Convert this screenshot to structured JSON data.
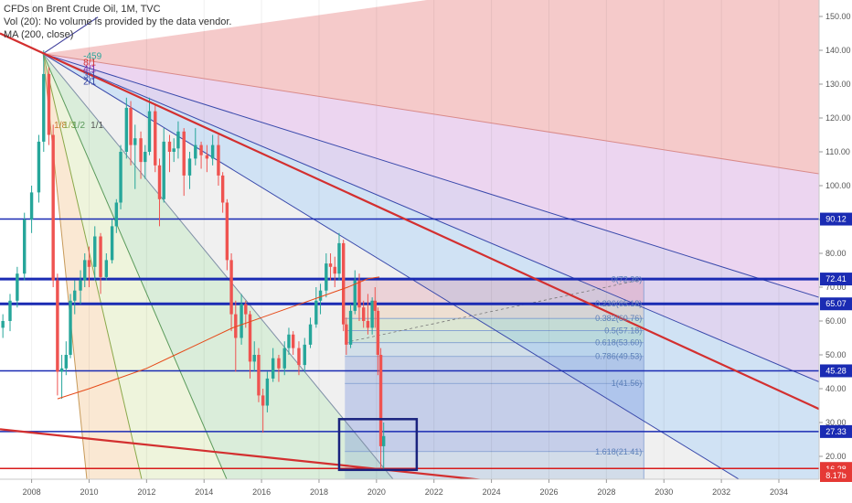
{
  "legend": {
    "line1": "CFDs on Brent Crude Oil, 1M, TVC",
    "line2": "Vol (20): No volume is provided by the data vendor.",
    "line3": "MA (200, close)"
  },
  "chart_data": {
    "type": "candlestick",
    "x_range": [
      2006.9,
      2035.4
    ],
    "y_range": [
      8.17,
      155
    ],
    "x_ticks": [
      "2008",
      "2010",
      "2012",
      "2014",
      "2016",
      "2018",
      "2020",
      "2022",
      "2024",
      "2026",
      "2028",
      "2030",
      "2032",
      "2034"
    ],
    "y_ticks": [
      150,
      140,
      130,
      120,
      110,
      100,
      90,
      80,
      70,
      60,
      50,
      40,
      30,
      20
    ],
    "levels": [
      {
        "value": 90.12,
        "label": "90.12",
        "color": "#1a2bb3",
        "width": 1.5
      },
      {
        "value": 72.41,
        "label": "72.41",
        "color": "#1a2bb3",
        "width": 3
      },
      {
        "value": 65.07,
        "label": "65.07",
        "color": "#1a2bb3",
        "width": 3
      },
      {
        "value": 45.28,
        "label": "45.28",
        "color": "#1a2bb3",
        "width": 1.5
      },
      {
        "value": 27.33,
        "label": "27.33",
        "color": "#1a2bb3",
        "width": 1.5
      },
      {
        "value": 16.41,
        "label": "16.41",
        "color": "#d81b1b",
        "width": 1.5
      }
    ],
    "price_badges": [
      {
        "value": 16.28,
        "label": "16.28",
        "color": "#e53935"
      },
      {
        "value": 8.17,
        "label": "8.17b",
        "color": "#e53935"
      }
    ],
    "fib_levels": [
      {
        "label": "0(72.36)",
        "value": 72.36
      },
      {
        "label": "0.236(65.18)",
        "value": 65.18
      },
      {
        "label": "0.382(60.76)",
        "value": 60.76
      },
      {
        "label": "0.5(57.18)",
        "value": 57.18
      },
      {
        "label": "0.618(53.60)",
        "value": 53.6
      },
      {
        "label": "0.786(49.53)",
        "value": 49.53
      },
      {
        "label": "1(41.56)",
        "value": 41.56
      },
      {
        "label": "1.618(21.41)",
        "value": 21.41
      }
    ],
    "gann_labels_top": [
      "-459",
      "8/1",
      "4/1",
      "3/1",
      "2/1"
    ],
    "gann_labels_mid": [
      "1/8",
      "1/3",
      "1/2",
      "1/1"
    ],
    "candles": [
      [
        2007.0,
        58,
        62,
        55,
        60
      ],
      [
        2007.25,
        60,
        68,
        57,
        66
      ],
      [
        2007.5,
        66,
        76,
        64,
        74
      ],
      [
        2007.75,
        74,
        92,
        72,
        90
      ],
      [
        2008.0,
        90,
        100,
        86,
        98
      ],
      [
        2008.25,
        98,
        115,
        95,
        113
      ],
      [
        2008.42,
        113,
        140,
        110,
        133
      ],
      [
        2008.6,
        133,
        135,
        112,
        115
      ],
      [
        2008.75,
        115,
        118,
        70,
        72
      ],
      [
        2008.9,
        72,
        74,
        38,
        45
      ],
      [
        2009.05,
        45,
        50,
        37,
        46
      ],
      [
        2009.2,
        46,
        54,
        44,
        50
      ],
      [
        2009.35,
        50,
        68,
        49,
        66
      ],
      [
        2009.5,
        66,
        72,
        62,
        69
      ],
      [
        2009.7,
        69,
        75,
        65,
        72
      ],
      [
        2009.85,
        72,
        80,
        70,
        78
      ],
      [
        2010.0,
        78,
        82,
        70,
        76
      ],
      [
        2010.2,
        76,
        88,
        72,
        85
      ],
      [
        2010.4,
        85,
        86,
        68,
        73
      ],
      [
        2010.6,
        73,
        80,
        72,
        78
      ],
      [
        2010.8,
        78,
        90,
        77,
        88
      ],
      [
        2010.95,
        88,
        96,
        86,
        95
      ],
      [
        2011.1,
        95,
        112,
        93,
        110
      ],
      [
        2011.3,
        110,
        126,
        108,
        123
      ],
      [
        2011.45,
        123,
        125,
        106,
        112
      ],
      [
        2011.6,
        112,
        118,
        99,
        114
      ],
      [
        2011.8,
        114,
        116,
        102,
        107
      ],
      [
        2011.95,
        107,
        112,
        102,
        110
      ],
      [
        2012.1,
        110,
        126,
        109,
        122
      ],
      [
        2012.3,
        122,
        124,
        104,
        106
      ],
      [
        2012.45,
        106,
        108,
        88,
        96
      ],
      [
        2012.6,
        96,
        117,
        95,
        113
      ],
      [
        2012.8,
        113,
        115,
        104,
        110
      ],
      [
        2012.95,
        110,
        114,
        107,
        111
      ],
      [
        2013.1,
        111,
        119,
        108,
        116
      ],
      [
        2013.3,
        116,
        117,
        97,
        103
      ],
      [
        2013.5,
        103,
        110,
        99,
        108
      ],
      [
        2013.7,
        108,
        117,
        106,
        112
      ],
      [
        2013.9,
        112,
        113,
        105,
        109
      ],
      [
        2014.1,
        109,
        112,
        104,
        108
      ],
      [
        2014.3,
        108,
        115,
        106,
        112
      ],
      [
        2014.5,
        112,
        115,
        100,
        103
      ],
      [
        2014.65,
        103,
        104,
        92,
        95
      ],
      [
        2014.8,
        95,
        96,
        75,
        78
      ],
      [
        2014.95,
        78,
        80,
        57,
        62
      ],
      [
        2015.1,
        62,
        66,
        45,
        55
      ],
      [
        2015.3,
        55,
        68,
        53,
        65
      ],
      [
        2015.45,
        65,
        66,
        58,
        62
      ],
      [
        2015.6,
        62,
        63,
        43,
        48
      ],
      [
        2015.75,
        48,
        54,
        45,
        50
      ],
      [
        2015.9,
        50,
        52,
        36,
        38
      ],
      [
        2016.05,
        38,
        40,
        27,
        35
      ],
      [
        2016.2,
        35,
        45,
        33,
        43
      ],
      [
        2016.4,
        43,
        52,
        42,
        49
      ],
      [
        2016.6,
        49,
        50,
        42,
        46
      ],
      [
        2016.8,
        46,
        54,
        44,
        52
      ],
      [
        2016.95,
        52,
        58,
        50,
        56
      ],
      [
        2017.1,
        56,
        57,
        50,
        52
      ],
      [
        2017.3,
        52,
        54,
        44,
        47
      ],
      [
        2017.5,
        47,
        55,
        45,
        53
      ],
      [
        2017.7,
        53,
        61,
        52,
        59
      ],
      [
        2017.9,
        59,
        70,
        58,
        66
      ],
      [
        2018.05,
        66,
        71,
        62,
        69
      ],
      [
        2018.25,
        69,
        80,
        67,
        77
      ],
      [
        2018.4,
        77,
        80,
        72,
        76
      ],
      [
        2018.55,
        76,
        79,
        70,
        74
      ],
      [
        2018.7,
        74,
        86,
        72,
        83
      ],
      [
        2018.85,
        83,
        84,
        57,
        59
      ],
      [
        2018.95,
        59,
        61,
        50,
        53
      ],
      [
        2019.1,
        53,
        65,
        52,
        63
      ],
      [
        2019.25,
        63,
        75,
        62,
        72
      ],
      [
        2019.4,
        72,
        74,
        60,
        64
      ],
      [
        2019.55,
        64,
        66,
        58,
        60
      ],
      [
        2019.7,
        60,
        68,
        56,
        58
      ],
      [
        2019.85,
        58,
        67,
        56,
        66
      ],
      [
        2019.95,
        66,
        70,
        58,
        63
      ],
      [
        2020.05,
        63,
        64,
        44,
        50
      ],
      [
        2020.15,
        50,
        52,
        16,
        23
      ],
      [
        2020.25,
        23,
        30,
        16,
        26
      ]
    ]
  }
}
